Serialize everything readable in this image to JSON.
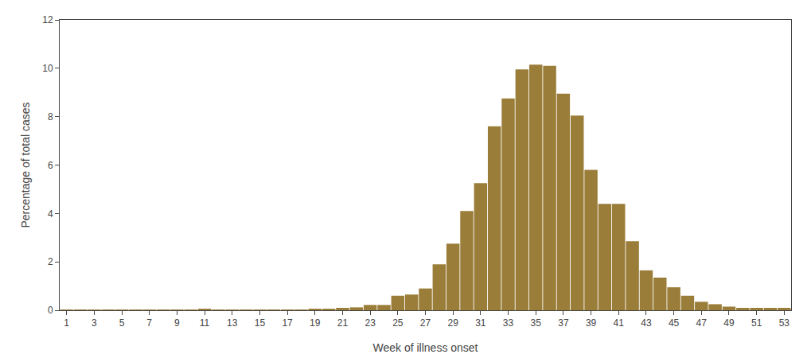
{
  "chart_data": {
    "type": "bar",
    "x": [
      1,
      2,
      3,
      4,
      5,
      6,
      7,
      8,
      9,
      10,
      11,
      12,
      13,
      14,
      15,
      16,
      17,
      18,
      19,
      20,
      21,
      22,
      23,
      24,
      25,
      26,
      27,
      28,
      29,
      30,
      31,
      32,
      33,
      34,
      35,
      36,
      37,
      38,
      39,
      40,
      41,
      42,
      43,
      44,
      45,
      46,
      47,
      48,
      49,
      50,
      51,
      52,
      53
    ],
    "values": [
      0.02,
      0.02,
      0.02,
      0.02,
      0.02,
      0.02,
      0.02,
      0.02,
      0.02,
      0.02,
      0.05,
      0.02,
      0.02,
      0.02,
      0.02,
      0.02,
      0.02,
      0.02,
      0.05,
      0.05,
      0.1,
      0.12,
      0.22,
      0.22,
      0.6,
      0.65,
      0.9,
      1.9,
      2.75,
      4.1,
      5.25,
      7.6,
      8.75,
      9.95,
      10.15,
      10.1,
      8.95,
      8.05,
      5.8,
      4.4,
      4.4,
      2.85,
      1.65,
      1.35,
      0.95,
      0.6,
      0.35,
      0.25,
      0.15,
      0.1,
      0.1,
      0.1,
      0.1
    ],
    "color": "#9b7d3a",
    "xlabel": "Week of illness onset",
    "ylabel": "Percentage of total cases",
    "xlim": [
      0.5,
      53.5
    ],
    "xticks": [
      1,
      3,
      5,
      7,
      9,
      11,
      13,
      15,
      17,
      19,
      21,
      23,
      25,
      27,
      29,
      31,
      33,
      35,
      37,
      39,
      41,
      43,
      45,
      47,
      49,
      51,
      53
    ],
    "ylim": [
      0,
      12
    ],
    "yticks": [
      0,
      2,
      4,
      6,
      8,
      10,
      12
    ],
    "grid": false
  }
}
